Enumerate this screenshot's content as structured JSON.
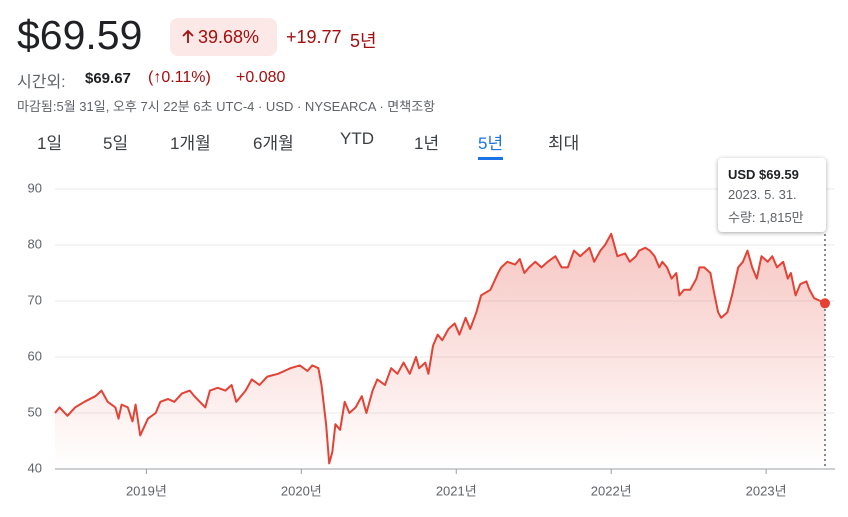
{
  "header": {
    "price": "$69.59",
    "change_pct": "39.68%",
    "change_abs": "+19.77",
    "period": "5년",
    "after_hours_label": "시간외:",
    "after_hours_price": "$69.67",
    "after_hours_change_pct": "(↑0.11%)",
    "after_hours_change_abs": "+0.080",
    "meta": "마감됨:5월 31일, 오후 7시 22분 6초 UTC-4 · USD · NYSEARCA · ",
    "disclaimer": "면책조항"
  },
  "tabs": {
    "items": [
      "1일",
      "5일",
      "1개월",
      "6개월",
      "YTD",
      "1년",
      "5년",
      "최대"
    ],
    "selected": 6
  },
  "tooltip": {
    "price": "USD $69.59",
    "date": "2023. 5. 31.",
    "volume": "수량: 1,815만"
  },
  "chart_data": {
    "type": "line",
    "x": [
      2018.41,
      2018.44,
      2018.49,
      2018.54,
      2018.6,
      2018.67,
      2018.71,
      2018.75,
      2018.8,
      2018.82,
      2018.84,
      2018.88,
      2018.91,
      2018.93,
      2018.96,
      2019.01,
      2019.06,
      2019.09,
      2019.14,
      2019.18,
      2019.23,
      2019.28,
      2019.31,
      2019.38,
      2019.41,
      2019.46,
      2019.51,
      2019.55,
      2019.58,
      2019.64,
      2019.68,
      2019.73,
      2019.78,
      2019.85,
      2019.89,
      2019.93,
      2019.99,
      2020.04,
      2020.07,
      2020.11,
      2020.13,
      2020.16,
      2020.18,
      2020.2,
      2020.22,
      2020.25,
      2020.28,
      2020.31,
      2020.35,
      2020.39,
      2020.42,
      2020.46,
      2020.49,
      2020.54,
      2020.58,
      2020.62,
      2020.66,
      2020.7,
      2020.74,
      2020.76,
      2020.8,
      2020.82,
      2020.85,
      2020.88,
      2020.91,
      2020.95,
      2020.99,
      2021.02,
      2021.06,
      2021.09,
      2021.13,
      2021.16,
      2021.22,
      2021.27,
      2021.29,
      2021.33,
      2021.38,
      2021.41,
      2021.44,
      2021.47,
      2021.51,
      2021.55,
      2021.59,
      2021.64,
      2021.68,
      2021.72,
      2021.76,
      2021.8,
      2021.86,
      2021.89,
      2021.93,
      2021.96,
      2022.0,
      2022.04,
      2022.09,
      2022.12,
      2022.16,
      2022.18,
      2022.22,
      2022.25,
      2022.28,
      2022.31,
      2022.33,
      2022.36,
      2022.39,
      2022.42,
      2022.44,
      2022.47,
      2022.51,
      2022.55,
      2022.57,
      2022.6,
      2022.64,
      2022.66,
      2022.69,
      2022.71,
      2022.75,
      2022.78,
      2022.82,
      2022.85,
      2022.88,
      2022.91,
      2022.94,
      2022.97,
      2023.01,
      2023.04,
      2023.07,
      2023.11,
      2023.14,
      2023.16,
      2023.19,
      2023.22,
      2023.26,
      2023.28,
      2023.31,
      2023.35,
      2023.38
    ],
    "series": [
      {
        "color": "#e34234",
        "values": [
          50,
          51,
          49.5,
          51,
          52,
          53,
          54,
          52,
          51,
          49,
          51.5,
          51,
          48.5,
          51.5,
          46,
          49,
          50,
          52,
          52.5,
          52,
          53.5,
          54,
          53,
          51,
          54,
          54.5,
          54,
          55,
          52,
          54,
          56,
          55,
          56.5,
          57,
          57.5,
          58,
          58.5,
          57.5,
          58.5,
          58,
          55,
          48,
          41,
          43,
          48,
          47,
          52,
          50,
          51,
          53,
          50,
          54,
          56,
          55,
          58,
          57,
          59,
          57,
          60,
          58,
          59,
          57,
          62,
          64,
          63,
          65,
          66,
          64,
          67,
          65,
          68,
          71,
          72,
          75,
          76,
          77,
          76.5,
          77.5,
          75,
          76,
          77,
          76,
          77,
          78,
          76,
          76,
          79,
          78,
          79.5,
          77,
          79,
          80,
          82,
          78,
          78.5,
          77,
          78,
          79,
          79.5,
          79,
          78,
          76,
          77,
          76,
          74,
          75,
          71,
          72,
          72,
          74,
          76,
          76,
          75,
          72,
          68,
          67,
          68,
          71,
          76,
          77,
          79,
          76,
          74,
          78,
          77,
          78,
          76,
          77,
          74,
          75,
          71,
          73,
          73.5,
          72,
          70.5,
          70,
          69.59
        ]
      }
    ],
    "xlim": [
      2018.41,
      2023.38
    ],
    "xticks": [
      {
        "value": 2019,
        "label": "2019년"
      },
      {
        "value": 2020,
        "label": "2020년"
      },
      {
        "value": 2021,
        "label": "2021년"
      },
      {
        "value": 2022,
        "label": "2022년"
      },
      {
        "value": 2023,
        "label": "2023년"
      }
    ],
    "ylim": [
      40,
      90
    ],
    "yticks": [
      40,
      50,
      60,
      70,
      80,
      90
    ],
    "grid": true
  }
}
